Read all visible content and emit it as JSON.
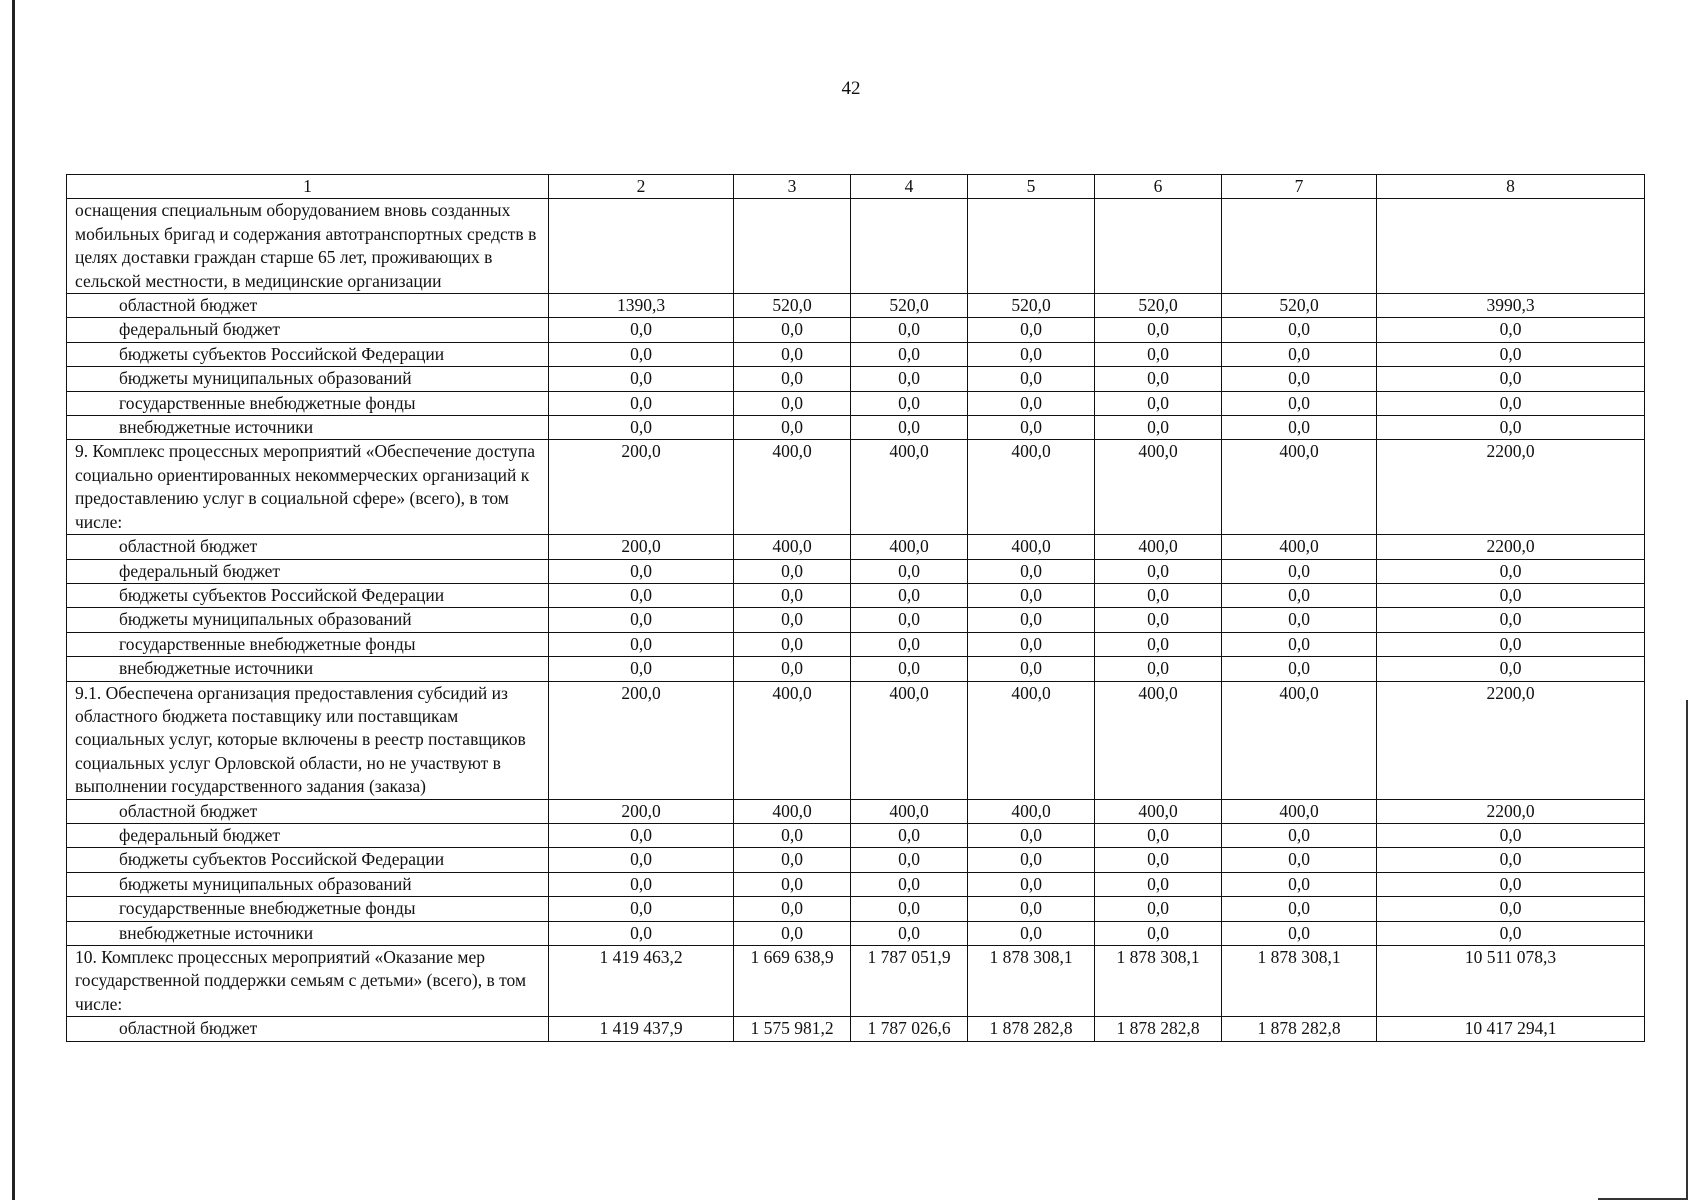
{
  "page_number": "42",
  "header": [
    "1",
    "2",
    "3",
    "4",
    "5",
    "6",
    "7",
    "8"
  ],
  "rows": [
    {
      "label": "оснащения специальным оборудованием вновь созданных мобильных бригад и содержания автотранспортных средств в целях доставки граждан старше 65 лет, проживающих в сельской местности, в медицинские организации",
      "sub": false,
      "values": [
        "",
        "",
        "",
        "",
        "",
        "",
        ""
      ]
    },
    {
      "label": "областной бюджет",
      "sub": true,
      "values": [
        "1390,3",
        "520,0",
        "520,0",
        "520,0",
        "520,0",
        "520,0",
        "3990,3"
      ]
    },
    {
      "label": "федеральный бюджет",
      "sub": true,
      "values": [
        "0,0",
        "0,0",
        "0,0",
        "0,0",
        "0,0",
        "0,0",
        "0,0"
      ]
    },
    {
      "label": "бюджеты субъектов Российской Федерации",
      "sub": true,
      "values": [
        "0,0",
        "0,0",
        "0,0",
        "0,0",
        "0,0",
        "0,0",
        "0,0"
      ]
    },
    {
      "label": "бюджеты муниципальных образований",
      "sub": true,
      "values": [
        "0,0",
        "0,0",
        "0,0",
        "0,0",
        "0,0",
        "0,0",
        "0,0"
      ]
    },
    {
      "label": "государственные внебюджетные фонды",
      "sub": true,
      "values": [
        "0,0",
        "0,0",
        "0,0",
        "0,0",
        "0,0",
        "0,0",
        "0,0"
      ]
    },
    {
      "label": "внебюджетные источники",
      "sub": true,
      "values": [
        "0,0",
        "0,0",
        "0,0",
        "0,0",
        "0,0",
        "0,0",
        "0,0"
      ]
    },
    {
      "label": "9. Комплекс процессных мероприятий «Обеспечение доступа социально ориентированных некоммерческих организаций к предоставлению услуг в социальной сфере» (всего), в том числе:",
      "sub": false,
      "values": [
        "200,0",
        "400,0",
        "400,0",
        "400,0",
        "400,0",
        "400,0",
        "2200,0"
      ]
    },
    {
      "label": "областной бюджет",
      "sub": true,
      "values": [
        "200,0",
        "400,0",
        "400,0",
        "400,0",
        "400,0",
        "400,0",
        "2200,0"
      ]
    },
    {
      "label": "федеральный бюджет",
      "sub": true,
      "values": [
        "0,0",
        "0,0",
        "0,0",
        "0,0",
        "0,0",
        "0,0",
        "0,0"
      ]
    },
    {
      "label": "бюджеты субъектов Российской Федерации",
      "sub": true,
      "values": [
        "0,0",
        "0,0",
        "0,0",
        "0,0",
        "0,0",
        "0,0",
        "0,0"
      ]
    },
    {
      "label": "бюджеты муниципальных образований",
      "sub": true,
      "values": [
        "0,0",
        "0,0",
        "0,0",
        "0,0",
        "0,0",
        "0,0",
        "0,0"
      ]
    },
    {
      "label": "государственные внебюджетные фонды",
      "sub": true,
      "values": [
        "0,0",
        "0,0",
        "0,0",
        "0,0",
        "0,0",
        "0,0",
        "0,0"
      ]
    },
    {
      "label": "внебюджетные источники",
      "sub": true,
      "values": [
        "0,0",
        "0,0",
        "0,0",
        "0,0",
        "0,0",
        "0,0",
        "0,0"
      ]
    },
    {
      "label": "9.1. Обеспечена организация предоставления субсидий из областного бюджета поставщику или поставщикам социальных услуг, которые включены в реестр поставщиков социальных услуг Орловской области, но не участвуют в выполнении государственного задания (заказа)",
      "sub": false,
      "values": [
        "200,0",
        "400,0",
        "400,0",
        "400,0",
        "400,0",
        "400,0",
        "2200,0"
      ]
    },
    {
      "label": "областной бюджет",
      "sub": true,
      "values": [
        "200,0",
        "400,0",
        "400,0",
        "400,0",
        "400,0",
        "400,0",
        "2200,0"
      ]
    },
    {
      "label": "федеральный бюджет",
      "sub": true,
      "values": [
        "0,0",
        "0,0",
        "0,0",
        "0,0",
        "0,0",
        "0,0",
        "0,0"
      ]
    },
    {
      "label": "бюджеты субъектов Российской Федерации",
      "sub": true,
      "values": [
        "0,0",
        "0,0",
        "0,0",
        "0,0",
        "0,0",
        "0,0",
        "0,0"
      ]
    },
    {
      "label": "бюджеты муниципальных образований",
      "sub": true,
      "values": [
        "0,0",
        "0,0",
        "0,0",
        "0,0",
        "0,0",
        "0,0",
        "0,0"
      ]
    },
    {
      "label": "государственные внебюджетные фонды",
      "sub": true,
      "values": [
        "0,0",
        "0,0",
        "0,0",
        "0,0",
        "0,0",
        "0,0",
        "0,0"
      ]
    },
    {
      "label": "внебюджетные источники",
      "sub": true,
      "values": [
        "0,0",
        "0,0",
        "0,0",
        "0,0",
        "0,0",
        "0,0",
        "0,0"
      ]
    },
    {
      "label": "10. Комплекс процессных мероприятий «Оказание мер государственной поддержки семьям с детьми» (всего), в том числе:",
      "sub": false,
      "values": [
        "1 419 463,2",
        "1 669 638,9",
        "1 787 051,9",
        "1 878 308,1",
        "1 878 308,1",
        "1 878 308,1",
        "10 511 078,3"
      ]
    },
    {
      "label": "областной бюджет",
      "sub": true,
      "values": [
        "1 419 437,9",
        "1 575 981,2",
        "1 787 026,6",
        "1 878 282,8",
        "1 878 282,8",
        "1 878 282,8",
        "10 417 294,1"
      ]
    }
  ]
}
